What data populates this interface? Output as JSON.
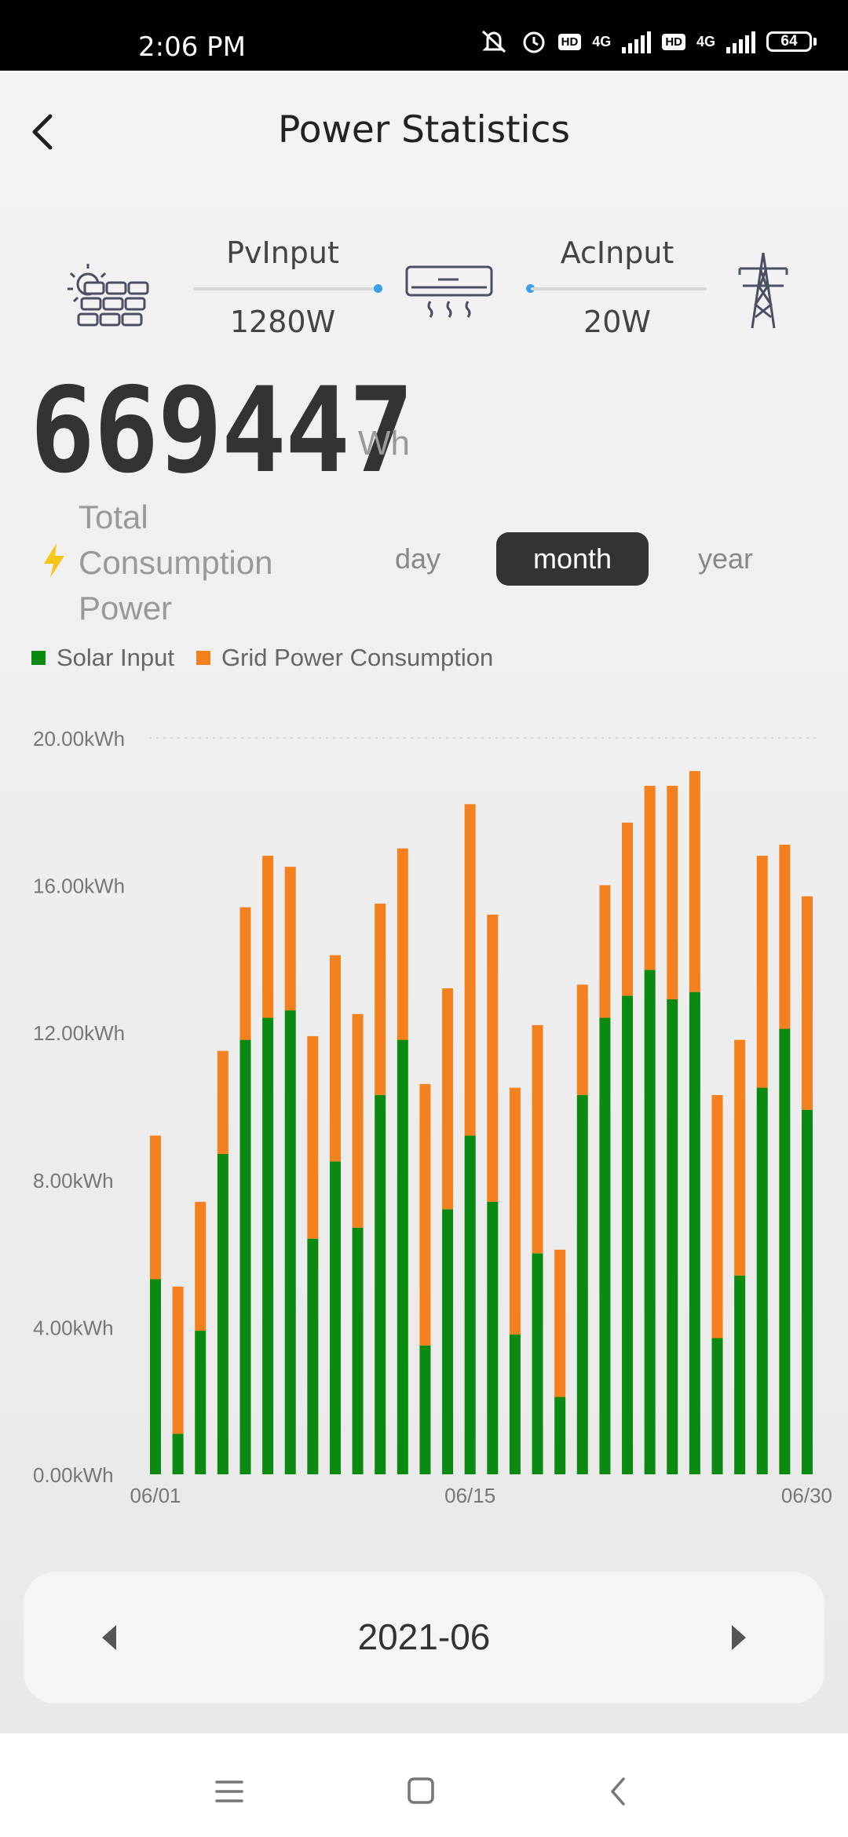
{
  "status_bar": {
    "time": "2:06 PM",
    "network_1": "4G",
    "network_2": "4G",
    "hd_badge": "HD",
    "battery": "64"
  },
  "header": {
    "title": "Power Statistics"
  },
  "flow": {
    "pv_label": "PvInput",
    "pv_value": "1280W",
    "ac_label": "AcInput",
    "ac_value": "20W",
    "icons": [
      "solar-panel-icon",
      "air-conditioner-icon",
      "power-tower-icon"
    ],
    "accent": "#3aa0e8"
  },
  "total": {
    "value": "669447",
    "unit": "Wh",
    "label": "Total Consumption Power"
  },
  "range_tabs": {
    "day": "day",
    "month": "month",
    "year": "year",
    "active": "month"
  },
  "legend": {
    "solar": "Solar Input",
    "grid": "Grid Power Consumption"
  },
  "colors": {
    "solar": "#0b8a12",
    "grid": "#f5801e",
    "dark": "#333333"
  },
  "chart_data": {
    "type": "bar",
    "stacked": true,
    "y_ticks": [
      "20.00kWh",
      "16.00kWh",
      "12.00kWh",
      "8.00kWh",
      "4.00kWh",
      "0.00kWh"
    ],
    "ylim": [
      0,
      20
    ],
    "x_tick_labels": [
      "06/01",
      "06/15",
      "06/30"
    ],
    "grid": "dashed top line",
    "legend_position": "top-left",
    "categories": [
      "06/01",
      "06/02",
      "06/03",
      "06/04",
      "06/05",
      "06/06",
      "06/07",
      "06/08",
      "06/09",
      "06/10",
      "06/11",
      "06/12",
      "06/13",
      "06/14",
      "06/15",
      "06/16",
      "06/17",
      "06/18",
      "06/19",
      "06/20",
      "06/21",
      "06/22",
      "06/23",
      "06/24",
      "06/25",
      "06/26",
      "06/27",
      "06/28",
      "06/29",
      "06/30"
    ],
    "series": [
      {
        "name": "Solar Input",
        "values": [
          5.3,
          1.1,
          3.9,
          8.7,
          11.8,
          12.4,
          12.6,
          6.4,
          8.5,
          6.7,
          10.3,
          11.8,
          3.5,
          7.2,
          9.2,
          7.4,
          3.8,
          6.0,
          2.1,
          10.3,
          12.4,
          13.0,
          13.7,
          12.9,
          13.1,
          3.7,
          5.4,
          10.5,
          12.1,
          9.9
        ]
      },
      {
        "name": "Grid Power Consumption",
        "values": [
          3.9,
          4.0,
          3.5,
          2.8,
          3.6,
          4.4,
          3.9,
          5.5,
          5.6,
          5.8,
          5.2,
          5.2,
          7.1,
          6.0,
          9.0,
          7.8,
          6.7,
          6.2,
          4.0,
          3.0,
          3.6,
          4.7,
          5.0,
          5.8,
          6.0,
          6.6,
          6.4,
          6.3,
          5.0,
          5.8
        ]
      }
    ]
  },
  "month_nav": {
    "label": "2021-06"
  },
  "system_nav": {
    "icons": [
      "menu-icon",
      "home-icon",
      "back-icon"
    ]
  }
}
